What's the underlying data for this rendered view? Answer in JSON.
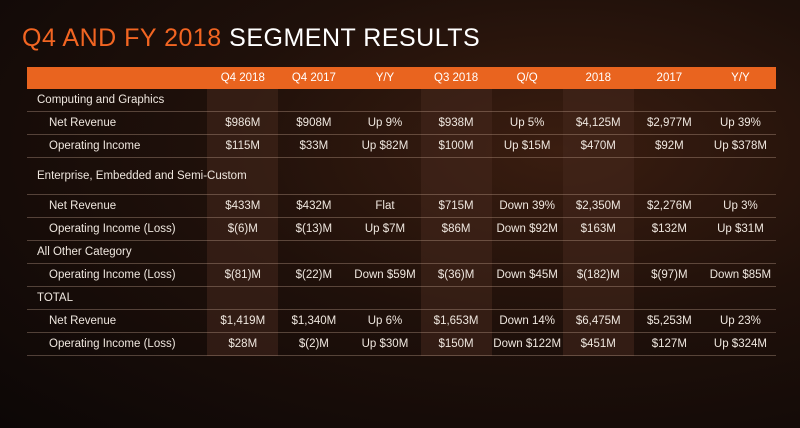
{
  "title": {
    "accent": "Q4 AND FY 2018",
    "rest": " SEGMENT RESULTS"
  },
  "columns": [
    "",
    "Q4 2018",
    "Q4 2017",
    "Y/Y",
    "Q3 2018",
    "Q/Q",
    "2018",
    "2017",
    "Y/Y"
  ],
  "rows": [
    {
      "type": "section",
      "label": "Computing and Graphics",
      "cells": [
        "",
        "",
        "",
        "",
        "",
        "",
        "",
        ""
      ]
    },
    {
      "type": "sub",
      "label": "Net Revenue",
      "cells": [
        "$986M",
        "$908M",
        "Up 9%",
        "$938M",
        "Up 5%",
        "$4,125M",
        "$2,977M",
        "Up 39%"
      ]
    },
    {
      "type": "sub",
      "label": "Operating Income",
      "cells": [
        "$115M",
        "$33M",
        "Up $82M",
        "$100M",
        "Up $15M",
        "$470M",
        "$92M",
        "Up $378M"
      ]
    },
    {
      "type": "section-tall",
      "label": "Enterprise, Embedded and Semi-Custom",
      "cells": [
        "",
        "",
        "",
        "",
        "",
        "",
        "",
        ""
      ]
    },
    {
      "type": "sub",
      "label": "Net Revenue",
      "cells": [
        "$433M",
        "$432M",
        "Flat",
        "$715M",
        "Down 39%",
        "$2,350M",
        "$2,276M",
        "Up 3%"
      ]
    },
    {
      "type": "sub",
      "label": "Operating Income (Loss)",
      "cells": [
        "$(6)M",
        "$(13)M",
        "Up $7M",
        "$86M",
        "Down $92M",
        "$163M",
        "$132M",
        "Up $31M"
      ]
    },
    {
      "type": "section",
      "label": "All Other Category",
      "cells": [
        "",
        "",
        "",
        "",
        "",
        "",
        "",
        ""
      ]
    },
    {
      "type": "sub",
      "label": "Operating Income (Loss)",
      "cells": [
        "$(81)M",
        "$(22)M",
        "Down $59M",
        "$(36)M",
        "Down $45M",
        "$(182)M",
        "$(97)M",
        "Down $85M"
      ]
    },
    {
      "type": "section",
      "label": "TOTAL",
      "cells": [
        "",
        "",
        "",
        "",
        "",
        "",
        "",
        ""
      ]
    },
    {
      "type": "sub",
      "label": "Net Revenue",
      "cells": [
        "$1,419M",
        "$1,340M",
        "Up 6%",
        "$1,653M",
        "Down 14%",
        "$6,475M",
        "$5,253M",
        "Up 23%"
      ]
    },
    {
      "type": "sub",
      "label": "Operating Income (Loss)",
      "cells": [
        "$28M",
        "$(2)M",
        "Up $30M",
        "$150M",
        "Down $122M",
        "$451M",
        "$127M",
        "Up $324M"
      ]
    }
  ]
}
